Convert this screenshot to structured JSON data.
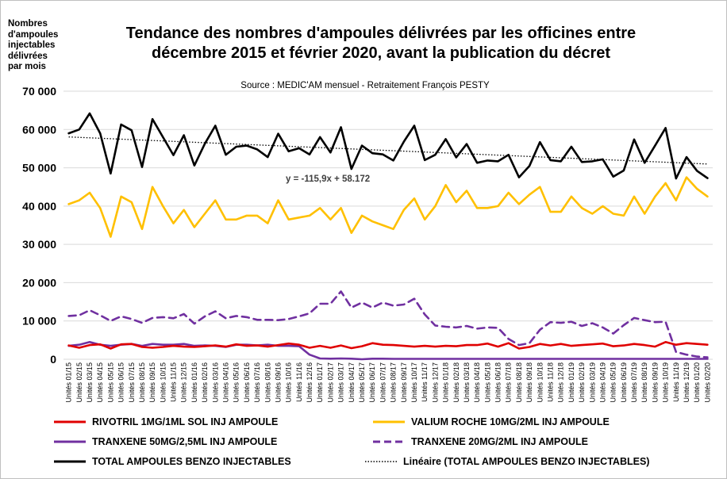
{
  "chart_data": {
    "type": "line",
    "title": "Tendance des nombres d'ampoules délivrées par les officines entre\ndécembre 2015 et février 2020, avant la publication du décret",
    "subtitle": "Source : MEDIC'AM mensuel - Retraitement François PESTY",
    "ylabel": "Nombres\nd'ampoules\ninjectables\ndélivrées\npar mois",
    "xlabel": "",
    "ylim": [
      0,
      70000
    ],
    "yticks": [
      0,
      10000,
      20000,
      30000,
      40000,
      50000,
      60000,
      70000
    ],
    "ytick_labels": [
      "0",
      "10 000",
      "20 000",
      "30 000",
      "40 000",
      "50 000",
      "60 000",
      "70 000"
    ],
    "grid": true,
    "legend_position": "bottom",
    "categories": [
      "Unités 01/15",
      "Unités 02/15",
      "Unités 03/15",
      "Unités 04/15",
      "Unités 05/15",
      "Unités 06/15",
      "Unités 07/15",
      "Unités 08/15",
      "Unités 09/15",
      "Unités 10/15",
      "Unités 11/15",
      "Unités 12/15",
      "Unités 01/16",
      "Unités 02/16",
      "Unités 03/16",
      "Unités 04/16",
      "Unités 05/16",
      "Unités 06/16",
      "Unités 07/16",
      "Unités 08/16",
      "Unités 09/16",
      "Unités 10/16",
      "Unités 11/16",
      "Unités 12/16",
      "Unités 01/17",
      "Unités 02/17",
      "Unités 03/17",
      "Unités 04/17",
      "Unités 05/17",
      "Unités 06/17",
      "Unités 07/17",
      "Unités 08/17",
      "Unités 09/17",
      "Unités 10/17",
      "Unités 11/17",
      "Unités 12/17",
      "Unités 01/18",
      "Unités 02/18",
      "Unités 03/18",
      "Unités 04/18",
      "Unités 05/18",
      "Unités 06/18",
      "Unités 07/18",
      "Unités 08/18",
      "Unités 09/18",
      "Unités 10/18",
      "Unités 11/18",
      "Unités 12/18",
      "Unités 01/19",
      "Unités 02/19",
      "Unités 03/19",
      "Unités 04/19",
      "Unités 05/19",
      "Unités 06/19",
      "Unités 07/19",
      "Unités 08/19",
      "Unités 09/19",
      "Unités 10/19",
      "Unités 11/19",
      "Unités 12/19",
      "Unités 01/20",
      "Unités 02/20"
    ],
    "series": [
      {
        "name": "RIVOTRIL 1MG/1ML SOL INJ AMPOULE",
        "color": "#e00000",
        "style": "solid",
        "values": [
          3600,
          3000,
          3700,
          3900,
          2800,
          3900,
          4000,
          3200,
          3000,
          3200,
          3500,
          3300,
          3200,
          3400,
          3600,
          3300,
          3900,
          3500,
          3600,
          3300,
          3700,
          4100,
          3800,
          3000,
          3500,
          3000,
          3600,
          2900,
          3400,
          4200,
          3800,
          3700,
          3500,
          3300,
          3500,
          3300,
          3500,
          3400,
          3700,
          3700,
          4100,
          3300,
          4200,
          2800,
          3200,
          4000,
          3600,
          4000,
          3500,
          3700,
          3900,
          4100,
          3400,
          3600,
          4000,
          3700,
          3300,
          4500,
          3800,
          4200,
          4000,
          3800
        ]
      },
      {
        "name": "VALIUM ROCHE 10MG/2ML INJ AMPOULE",
        "color": "#ffc000",
        "style": "solid",
        "values": [
          40500,
          41500,
          43500,
          39500,
          32000,
          42500,
          41000,
          34000,
          45000,
          40000,
          35500,
          39000,
          34500,
          38000,
          41500,
          36500,
          36500,
          37500,
          37500,
          35500,
          41500,
          36500,
          37000,
          37500,
          39500,
          36500,
          39500,
          33000,
          37500,
          36000,
          35000,
          34000,
          39000,
          42000,
          36500,
          40000,
          45500,
          41000,
          44000,
          39500,
          39500,
          40000,
          43500,
          40500,
          43000,
          45000,
          38500,
          38500,
          42500,
          39500,
          38000,
          40000,
          38000,
          37500,
          42500,
          38000,
          42500,
          46000,
          41500,
          47500,
          44500,
          42500
        ]
      },
      {
        "name": "TRANXENE 50MG/2,5ML INJ AMPOULE",
        "color": "#7030a0",
        "style": "solid",
        "values": [
          3500,
          3800,
          4500,
          3800,
          3500,
          3800,
          4000,
          3500,
          4000,
          3800,
          3800,
          4000,
          3500,
          3600,
          3500,
          3200,
          3800,
          3800,
          3600,
          3800,
          3500,
          3500,
          3400,
          1200,
          200,
          150,
          200,
          150,
          0,
          150,
          150,
          100,
          100,
          100,
          100,
          100,
          100,
          100,
          100,
          100,
          100,
          100,
          100,
          100,
          100,
          100,
          100,
          100,
          100,
          100,
          100,
          100,
          100,
          100,
          100,
          100,
          100,
          100,
          100,
          100,
          100,
          100
        ]
      },
      {
        "name": "TRANXENE 20MG/2ML INJ AMPOULE",
        "color": "#7030a0",
        "style": "dashed",
        "values": [
          11300,
          11500,
          12800,
          11500,
          10000,
          11200,
          10500,
          9500,
          10800,
          11000,
          10700,
          11800,
          9300,
          11200,
          12500,
          10700,
          11300,
          11000,
          10300,
          10300,
          10200,
          10500,
          11200,
          12000,
          14500,
          14500,
          17700,
          13500,
          14800,
          13500,
          14800,
          14000,
          14300,
          15800,
          11700,
          8800,
          8500,
          8300,
          8700,
          8000,
          8300,
          8200,
          5300,
          3700,
          4200,
          7700,
          9700,
          9500,
          9800,
          8700,
          9400,
          8300,
          6700,
          8900,
          10800,
          10200,
          9700,
          9800,
          1900,
          1200,
          700,
          500
        ]
      },
      {
        "name": "TOTAL AMPOULES BENZO INJECTABLES",
        "color": "#000000",
        "style": "solid",
        "values": [
          59000,
          60000,
          64200,
          59000,
          48500,
          61300,
          59800,
          50200,
          62700,
          58000,
          53300,
          58500,
          50600,
          56300,
          61000,
          53400,
          55500,
          55800,
          54800,
          52800,
          58900,
          54300,
          55100,
          53500,
          58000,
          54000,
          60600,
          49700,
          55800,
          53800,
          53500,
          51900,
          56800,
          61000,
          52000,
          53400,
          57500,
          52700,
          56200,
          51300,
          51900,
          51700,
          53400,
          47500,
          50500,
          56700,
          52000,
          51700,
          55500,
          51500,
          51700,
          52200,
          47700,
          49300,
          57400,
          51300,
          55800,
          60400,
          47200,
          52800,
          49200,
          47300
        ]
      }
    ],
    "trendline": {
      "name": "Linéaire (TOTAL AMPOULES BENZO INJECTABLES)",
      "style": "dotted",
      "color": "#000000",
      "slope": -115.9,
      "intercept": 58172,
      "equation": "y = -115,9x + 58.172"
    }
  }
}
